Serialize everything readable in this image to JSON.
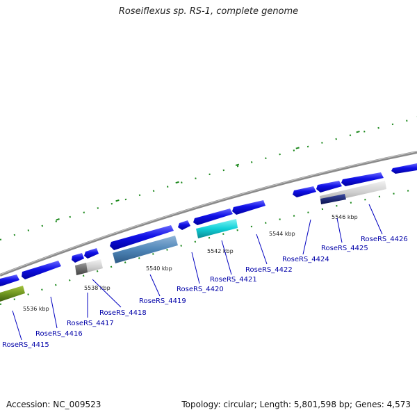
{
  "title": "Roseiflexus sp. RS-1, complete genome",
  "footer": {
    "accession": "Accession: NC_009523",
    "summary": "Topology: circular; Length: 5,801,598 bp; Genes: 4,573"
  },
  "colors": {
    "backbone": "#8a8a8a",
    "gene_cds": "#1010e6",
    "tick": "#1f8a1f",
    "label": "#0000a8"
  },
  "ticks": [
    {
      "label": "5536 kbp"
    },
    {
      "label": "5538 kbp"
    },
    {
      "label": "5540 kbp"
    },
    {
      "label": "5542 kbp"
    },
    {
      "label": "5544 kbp"
    },
    {
      "label": "5546 kbp"
    }
  ],
  "genes": [
    {
      "id": "RoseRS_4415"
    },
    {
      "id": "RoseRS_4416"
    },
    {
      "id": "RoseRS_4417"
    },
    {
      "id": "RoseRS_4418"
    },
    {
      "id": "RoseRS_4419"
    },
    {
      "id": "RoseRS_4420"
    },
    {
      "id": "RoseRS_4421"
    },
    {
      "id": "RoseRS_4422"
    },
    {
      "id": "RoseRS_4424"
    },
    {
      "id": "RoseRS_4425"
    },
    {
      "id": "RoseRS_4426"
    }
  ]
}
